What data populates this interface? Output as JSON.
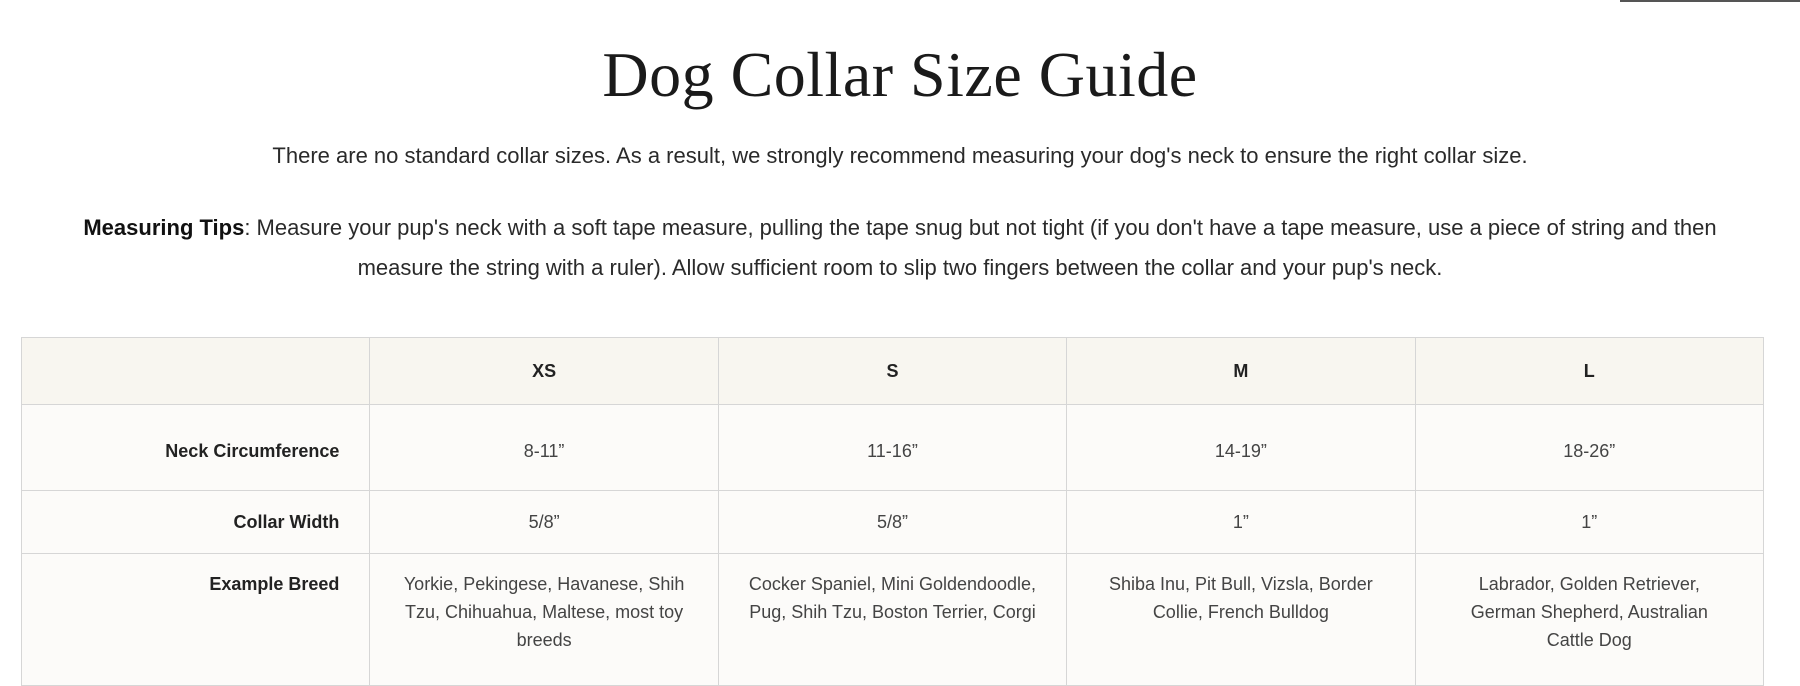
{
  "title": "Dog Collar Size Guide",
  "subtitle": "There are no standard collar sizes. As a result, we strongly recommend measuring your dog's neck to ensure the right collar size.",
  "tips": {
    "label": "Measuring Tips",
    "text": ": Measure your pup's neck with a soft tape measure, pulling the tape snug but not tight (if you don't have a tape measure, use a piece of string and then measure the string with a ruler). Allow sufficient room to slip two fingers between the collar and your pup's neck."
  },
  "table": {
    "headers": [
      "",
      "XS",
      "S",
      "M",
      "L"
    ],
    "rows": [
      {
        "label": "Neck Circumference",
        "values": [
          "8-11”",
          "11-16”",
          "14-19”",
          "18-26”"
        ]
      },
      {
        "label": "Collar Width",
        "values": [
          "5/8”",
          "5/8”",
          "1”",
          "1”"
        ]
      },
      {
        "label": "Example Breed",
        "values": [
          "Yorkie, Pekingese, Havanese, Shih Tzu, Chihuahua, Maltese, most toy breeds",
          "Cocker Spaniel, Mini Goldendoodle, Pug, Shih Tzu, Boston Terrier, Corgi",
          "Shiba Inu, Pit Bull, Vizsla, Border Collie, French Bulldog",
          "Labrador, Golden Retriever, German Shepherd, Australian Cattle Dog"
        ]
      }
    ]
  }
}
